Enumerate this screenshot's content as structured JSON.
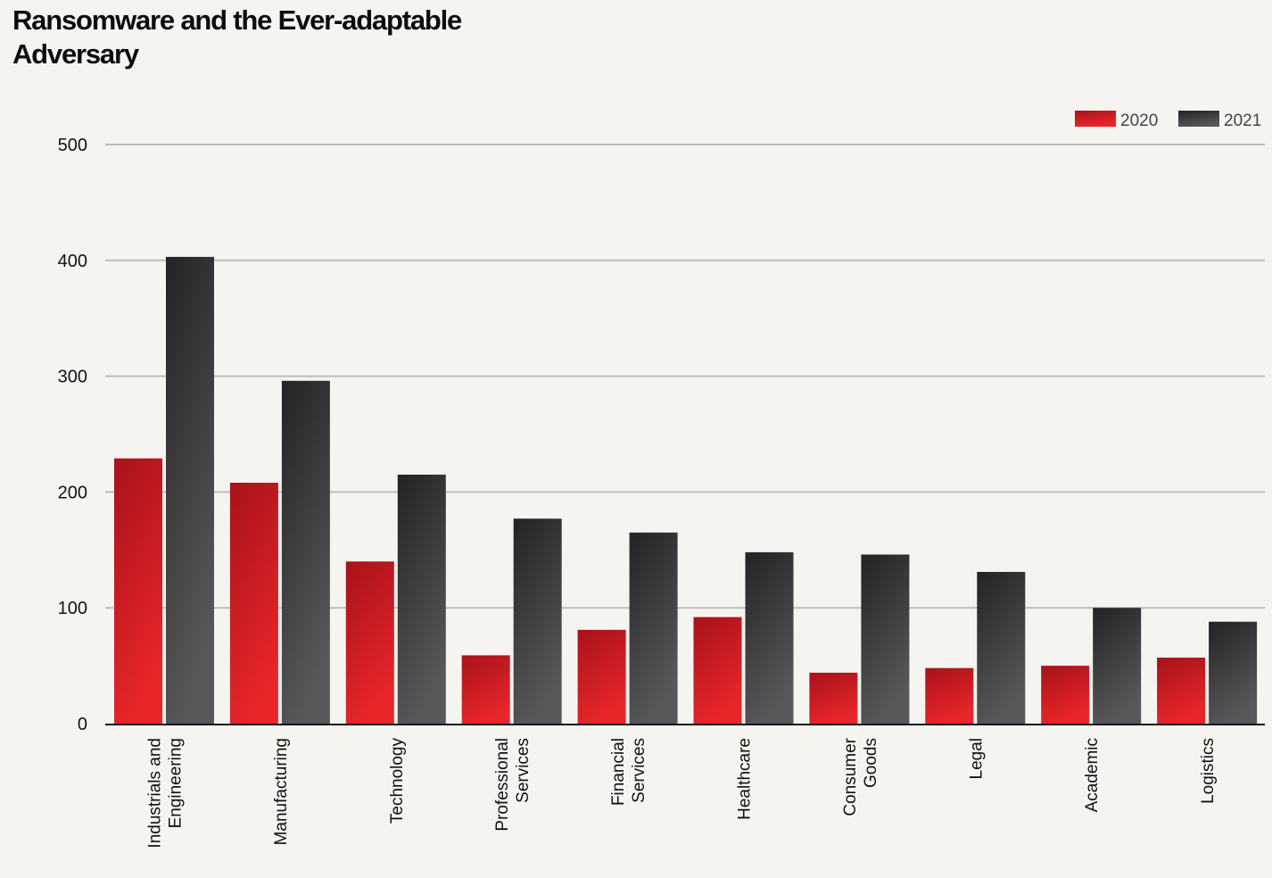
{
  "title_lines": [
    "Ransomware and the Ever-adaptable",
    "Adversary"
  ],
  "chart_data": {
    "type": "bar",
    "title": "Ransomware and the Ever-adaptable Adversary",
    "xlabel": "",
    "ylabel": "",
    "ylim": [
      0,
      500
    ],
    "yticks": [
      0,
      100,
      200,
      300,
      400,
      500
    ],
    "grid": true,
    "legend_position": "top-right",
    "categories": [
      [
        "Industrials and",
        "Engineering"
      ],
      [
        "Manufacturing"
      ],
      [
        "Technology"
      ],
      [
        "Professional",
        "Services"
      ],
      [
        "Financial",
        "Services"
      ],
      [
        "Healthcare"
      ],
      [
        "Consumer",
        "Goods"
      ],
      [
        "Legal"
      ],
      [
        "Academic"
      ],
      [
        "Logistics"
      ]
    ],
    "series": [
      {
        "name": "2020",
        "colors": [
          "#a8121a",
          "#e8262a"
        ],
        "values": [
          229,
          208,
          140,
          59,
          81,
          92,
          44,
          48,
          50,
          57
        ]
      },
      {
        "name": "2021",
        "colors": [
          "#232323",
          "#58585a"
        ],
        "values": [
          403,
          296,
          215,
          177,
          165,
          148,
          146,
          131,
          100,
          88
        ]
      }
    ]
  }
}
